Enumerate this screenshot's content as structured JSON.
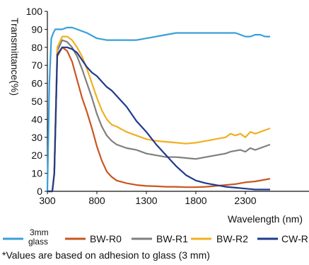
{
  "chart_data": {
    "type": "line",
    "title": "",
    "xlabel": "Wavelength (nm)",
    "ylabel": "Transmittance(%)",
    "xlim": [
      300,
      2700
    ],
    "ylim": [
      0,
      100
    ],
    "xticks": [
      300,
      800,
      1300,
      1800,
      2300
    ],
    "yticks": [
      0,
      10,
      20,
      30,
      40,
      50,
      60,
      70,
      80,
      90,
      100
    ],
    "grid": false,
    "legend_position": "bottom",
    "series": [
      {
        "name": "3mm glass",
        "color": "#3a9fd8",
        "x": [
          300,
          320,
          340,
          360,
          380,
          400,
          450,
          500,
          550,
          600,
          700,
          800,
          900,
          1000,
          1100,
          1200,
          1300,
          1400,
          1500,
          1600,
          1700,
          1800,
          1900,
          2000,
          2100,
          2200,
          2250,
          2300,
          2350,
          2400,
          2450,
          2500,
          2550
        ],
        "y": [
          0,
          60,
          85,
          88,
          90,
          90,
          90,
          91,
          91,
          90,
          88,
          85,
          84,
          84,
          84,
          84,
          85,
          86,
          87,
          88,
          88,
          88,
          88,
          88,
          88,
          88,
          87,
          86,
          86,
          87,
          87,
          86,
          86
        ]
      },
      {
        "name": "BW-R0",
        "color": "#c9561f",
        "x": [
          300,
          350,
          370,
          400,
          450,
          500,
          550,
          600,
          650,
          700,
          750,
          800,
          850,
          900,
          950,
          1000,
          1100,
          1200,
          1300,
          1400,
          1500,
          1600,
          1700,
          1800,
          1900,
          2000,
          2100,
          2200,
          2300,
          2400,
          2500,
          2550
        ],
        "y": [
          0,
          0,
          10,
          75,
          80,
          78,
          72,
          62,
          52,
          44,
          35,
          25,
          17,
          11,
          8,
          6,
          4.5,
          3.5,
          3,
          2.8,
          2.5,
          2.5,
          2.3,
          2.3,
          2.5,
          3,
          3.5,
          4,
          5,
          5.5,
          6.5,
          7
        ]
      },
      {
        "name": "BW-R1",
        "color": "#7f7f7f",
        "x": [
          300,
          350,
          370,
          400,
          450,
          500,
          550,
          600,
          650,
          700,
          750,
          800,
          850,
          900,
          950,
          1000,
          1100,
          1200,
          1300,
          1400,
          1500,
          1600,
          1700,
          1800,
          1900,
          2000,
          2100,
          2150,
          2200,
          2250,
          2300,
          2350,
          2400,
          2450,
          2500,
          2550
        ],
        "y": [
          0,
          0,
          10,
          78,
          84,
          83,
          80,
          75,
          68,
          60,
          52,
          43,
          36,
          31,
          28,
          26,
          24,
          23,
          21,
          20,
          19,
          19,
          18.5,
          18,
          19,
          20,
          21,
          22,
          22.5,
          23,
          22,
          24,
          23,
          24,
          25,
          26
        ]
      },
      {
        "name": "BW-R2",
        "color": "#f0b021",
        "x": [
          300,
          350,
          370,
          400,
          450,
          500,
          550,
          600,
          650,
          700,
          750,
          800,
          850,
          900,
          950,
          1000,
          1100,
          1200,
          1300,
          1400,
          1500,
          1600,
          1700,
          1800,
          1900,
          2000,
          2100,
          2150,
          2200,
          2250,
          2300,
          2350,
          2400,
          2450,
          2500,
          2550
        ],
        "y": [
          0,
          0,
          10,
          80,
          86,
          86,
          84,
          80,
          75,
          68,
          60,
          52,
          45,
          40,
          37,
          36,
          33,
          31,
          29,
          28,
          27.5,
          27,
          26.5,
          27,
          28,
          29,
          30,
          32,
          31,
          32,
          30,
          33,
          32,
          33,
          34,
          35
        ]
      },
      {
        "name": "CW-R",
        "color": "#1f3b8c",
        "x": [
          300,
          350,
          370,
          400,
          450,
          500,
          550,
          600,
          650,
          700,
          750,
          800,
          850,
          900,
          950,
          1000,
          1100,
          1200,
          1300,
          1400,
          1500,
          1600,
          1700,
          1800,
          1900,
          2000,
          2100,
          2200,
          2300,
          2400,
          2500,
          2550
        ],
        "y": [
          0,
          0,
          10,
          76,
          80,
          80,
          79,
          77,
          73,
          69,
          66,
          64,
          61,
          58,
          56,
          53,
          47,
          39,
          33,
          26,
          20,
          14,
          9,
          6,
          4.5,
          3.5,
          2.5,
          2,
          1.5,
          1,
          1,
          1
        ]
      }
    ]
  },
  "legend": [
    {
      "label": "3mm",
      "label2": "glass",
      "color": "#3a9fd8"
    },
    {
      "label": "BW-R0",
      "color": "#c9561f"
    },
    {
      "label": "BW-R1",
      "color": "#7f7f7f"
    },
    {
      "label": "BW-R2",
      "color": "#f0b021"
    },
    {
      "label": "CW-R",
      "color": "#1f3b8c"
    }
  ],
  "note": "*Values are based on adhesion to glass (3 mm)",
  "axis_text": {
    "ylabel": "Transmittance(%)",
    "xlabel": "Wavelength (nm)"
  }
}
